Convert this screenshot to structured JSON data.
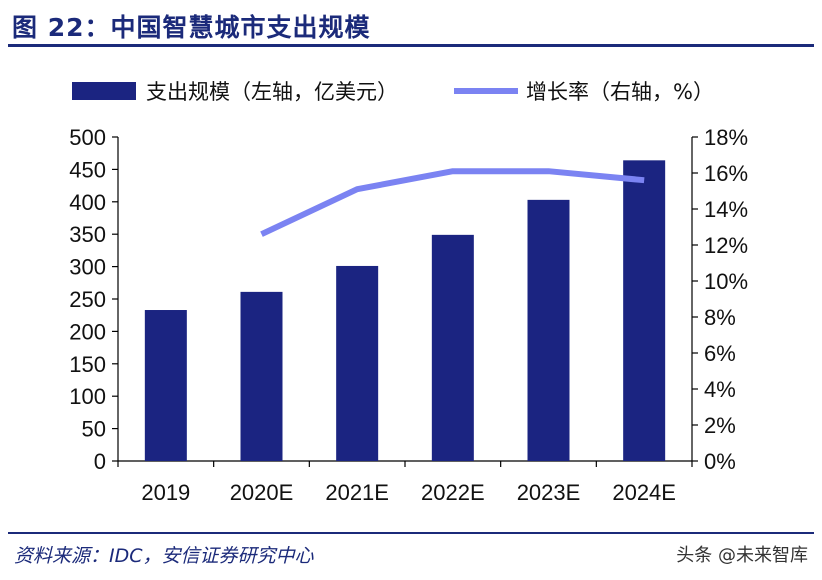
{
  "figure": {
    "title": "图 22：中国智慧城市支出规模",
    "source": "资料来源：IDC，安信证券研究中心",
    "watermark": "头条 @未来智库"
  },
  "colors": {
    "bar": "#1b2481",
    "line": "#7b83f2",
    "title": "#1b2a7a"
  },
  "chart_data": {
    "type": "bar",
    "categories": [
      "2019",
      "2020E",
      "2021E",
      "2022E",
      "2023E",
      "2024E"
    ],
    "series": [
      {
        "name": "支出规模（左轴，亿美元）",
        "type": "bar",
        "axis": "left",
        "values": [
          233,
          261,
          301,
          349,
          403,
          464
        ]
      },
      {
        "name": "增长率（右轴，%）",
        "type": "line",
        "axis": "right",
        "values": [
          null,
          12.6,
          15.1,
          16.1,
          16.1,
          15.6
        ]
      }
    ],
    "ylim_left": [
      0,
      500
    ],
    "ylim_right": [
      0,
      18
    ],
    "yticks_left": [
      "0",
      "50",
      "100",
      "150",
      "200",
      "250",
      "300",
      "350",
      "400",
      "450",
      "500"
    ],
    "yticks_right": [
      "0%",
      "2%",
      "4%",
      "6%",
      "8%",
      "10%",
      "12%",
      "14%",
      "16%",
      "18%"
    ],
    "legend_position": "top"
  }
}
